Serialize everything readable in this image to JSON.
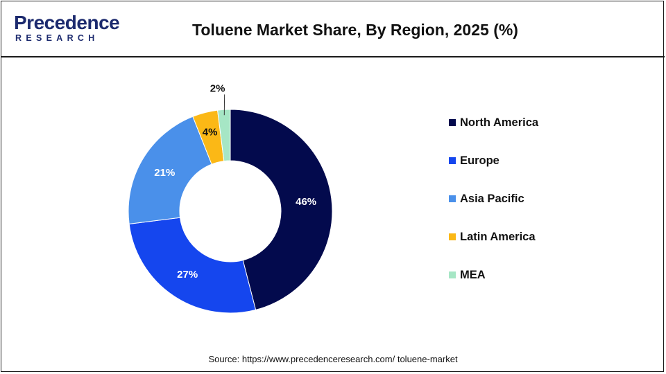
{
  "header": {
    "logo_top": "Precedence",
    "logo_bottom": "RESEARCH",
    "title": "Toluene Market Share, By Region, 2025 (%)"
  },
  "chart_data": {
    "type": "pie",
    "variant": "donut",
    "title": "Toluene Market Share, By Region, 2025 (%)",
    "categories": [
      "North America",
      "Europe",
      "Asia Pacific",
      "Latin America",
      "MEA"
    ],
    "values": [
      46,
      27,
      21,
      4,
      2
    ],
    "value_labels": [
      "46%",
      "27%",
      "21%",
      "4%",
      "2%"
    ],
    "colors": [
      "#030a4d",
      "#1546ee",
      "#4a90ea",
      "#fbb816",
      "#a6e6c5"
    ],
    "label_colors": [
      "#ffffff",
      "#ffffff",
      "#ffffff",
      "#111111",
      "#111111"
    ],
    "legend_position": "right"
  },
  "source": "Source: https://www.precedenceresearch.com/ toluene-market"
}
